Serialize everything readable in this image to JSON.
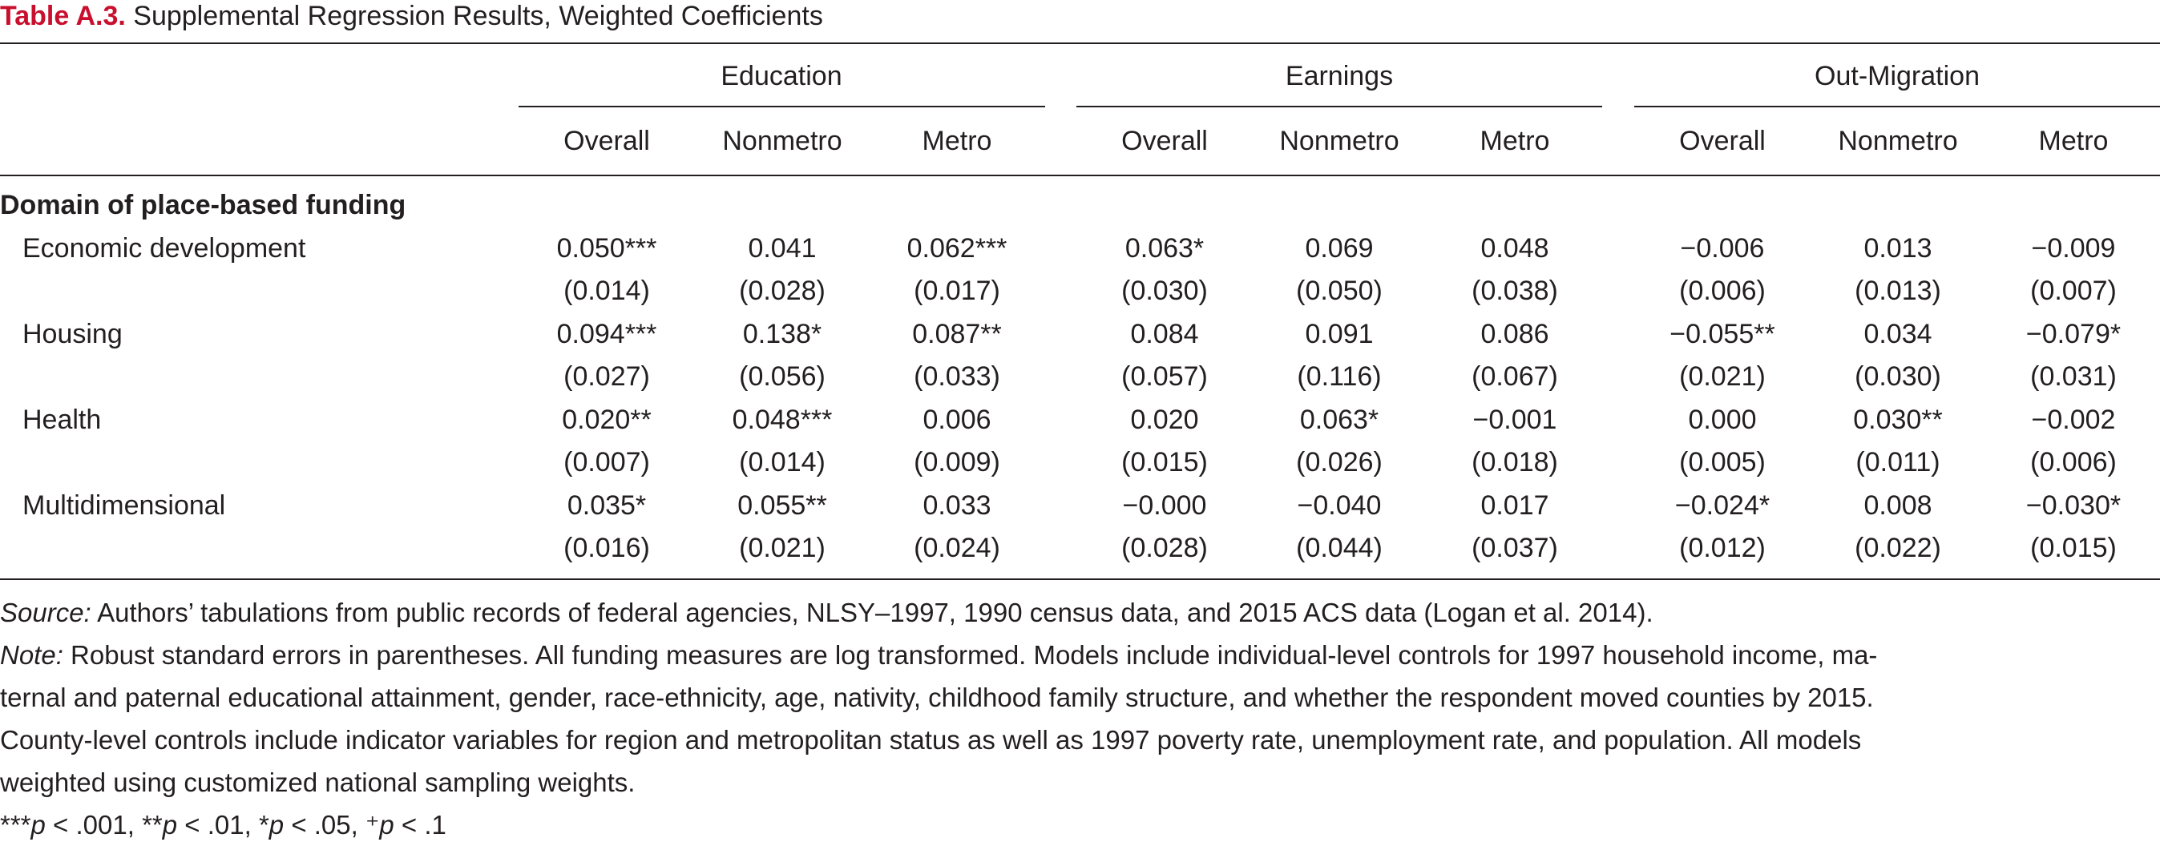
{
  "caption": {
    "label": "Table A.3.",
    "title": " Supplemental Regression Results, Weighted Coefficients"
  },
  "column_groups": [
    {
      "name": "Education",
      "columns": [
        "Overall",
        "Nonmetro",
        "Metro"
      ]
    },
    {
      "name": "Earnings",
      "columns": [
        "Overall",
        "Nonmetro",
        "Metro"
      ]
    },
    {
      "name": "Out-Migration",
      "columns": [
        "Overall",
        "Nonmetro",
        "Metro"
      ]
    }
  ],
  "section_title": "Domain of place-based funding",
  "rows": [
    {
      "label": "Economic development",
      "coef": [
        "0.050***",
        "0.041",
        "0.062***",
        "0.063*",
        "0.069",
        "0.048",
        "−0.006",
        "0.013",
        "−0.009"
      ],
      "se": [
        "(0.014)",
        "(0.028)",
        "(0.017)",
        "(0.030)",
        "(0.050)",
        "(0.038)",
        "(0.006)",
        "(0.013)",
        "(0.007)"
      ]
    },
    {
      "label": "Housing",
      "coef": [
        "0.094***",
        "0.138*",
        "0.087**",
        "0.084",
        "0.091",
        "0.086",
        "−0.055**",
        "0.034",
        "−0.079*"
      ],
      "se": [
        "(0.027)",
        "(0.056)",
        "(0.033)",
        "(0.057)",
        "(0.116)",
        "(0.067)",
        "(0.021)",
        "(0.030)",
        "(0.031)"
      ]
    },
    {
      "label": "Health",
      "coef": [
        "0.020**",
        "0.048***",
        "0.006",
        "0.020",
        "0.063*",
        "−0.001",
        "0.000",
        "0.030**",
        "−0.002"
      ],
      "se": [
        "(0.007)",
        "(0.014)",
        "(0.009)",
        "(0.015)",
        "(0.026)",
        "(0.018)",
        "(0.005)",
        "(0.011)",
        "(0.006)"
      ]
    },
    {
      "label": "Multidimensional",
      "coef": [
        "0.035*",
        "0.055**",
        "0.033",
        "−0.000",
        "−0.040",
        "0.017",
        "−0.024*",
        "0.008",
        "−0.030*"
      ],
      "se": [
        "(0.016)",
        "(0.021)",
        "(0.024)",
        "(0.028)",
        "(0.044)",
        "(0.037)",
        "(0.012)",
        "(0.022)",
        "(0.015)"
      ]
    }
  ],
  "notes": {
    "source_label": "Source:",
    "source_text": " Authors’ tabulations from public records of federal agencies, NLSY–1997, 1990 census data, and 2015 ACS data (Logan et al. 2014).",
    "note_label": "Note:",
    "note_line1": " Robust standard errors in parentheses. All funding measures are log transformed. Models include individual-level controls for 1997 household income, ma-",
    "note_line2": "ternal and paternal educational attainment, gender, race-ethnicity, age, nativity, childhood family structure, and whether the respondent moved counties by 2015.",
    "note_line3": "County-level controls include indicator variables for region and metropolitan status as well as 1997 poverty rate, unemployment rate, and population. All models",
    "note_line4": "weighted using customized national sampling weights.",
    "sig": {
      "s1": "***",
      "p1": "p",
      "t1": " < .001, ",
      "s2": "**",
      "p2": "p",
      "t2": " < .01, ",
      "s3": "*",
      "p3": "p",
      "t3": " < .05, ",
      "s4": "⁺",
      "p4": "p",
      "t4": " < .1"
    }
  }
}
